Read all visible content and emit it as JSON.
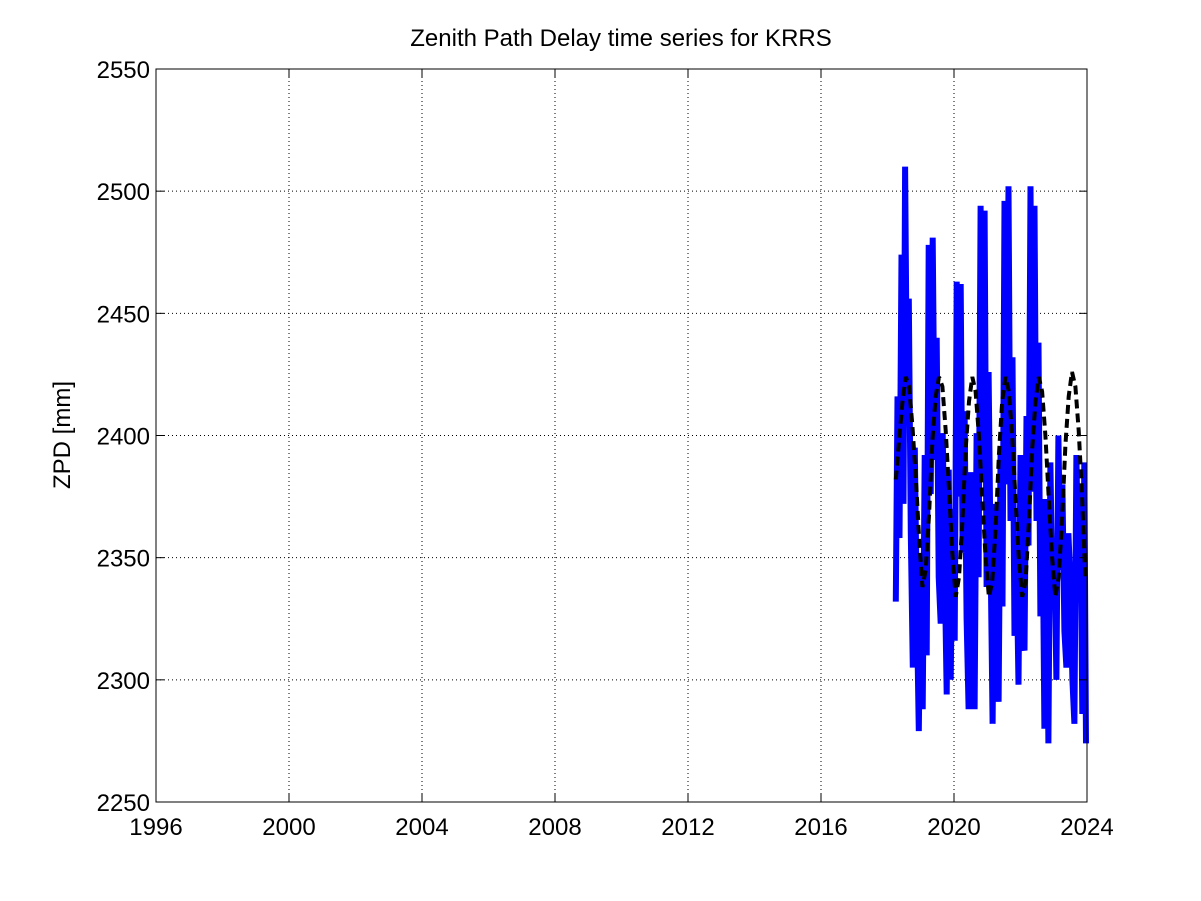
{
  "chart_data": {
    "type": "line",
    "title": "Zenith Path Delay time series for KRRS",
    "xlabel": "",
    "ylabel": "ZPD [mm]",
    "xlim": [
      1996,
      2024
    ],
    "ylim": [
      2250,
      2550
    ],
    "x_ticks": [
      "1996",
      "2000",
      "2004",
      "2008",
      "2012",
      "2016",
      "2020",
      "2024"
    ],
    "y_ticks": [
      "2250",
      "2300",
      "2350",
      "2400",
      "2450",
      "2500",
      "2550"
    ],
    "grid": true,
    "legend": "none",
    "colors": {
      "observed": "#0000ff",
      "model": "#000000"
    },
    "series": [
      {
        "style": "solid-thick",
        "color": "#0000ff",
        "x": [
          2018.25,
          2018.3,
          2018.36,
          2018.42,
          2018.48,
          2018.53,
          2018.59,
          2018.64,
          2018.7,
          2018.76,
          2018.82,
          2018.88,
          2018.94,
          2019.0,
          2019.06,
          2019.12,
          2019.18,
          2019.24,
          2019.3,
          2019.36,
          2019.42,
          2019.48,
          2019.54,
          2019.6,
          2019.66,
          2019.72,
          2019.78,
          2019.84,
          2019.9,
          2019.96,
          2020.02,
          2020.08,
          2020.14,
          2020.2,
          2020.26,
          2020.32,
          2020.38,
          2020.44,
          2020.5,
          2020.56,
          2020.62,
          2020.68,
          2020.74,
          2020.8,
          2020.86,
          2020.92,
          2020.98,
          2021.04,
          2021.1,
          2021.16,
          2021.22,
          2021.28,
          2021.34,
          2021.4,
          2021.46,
          2021.52,
          2021.58,
          2021.64,
          2021.7,
          2021.76,
          2021.82,
          2021.88,
          2021.94,
          2022.0,
          2022.06,
          2022.12,
          2022.18,
          2022.24,
          2022.3,
          2022.36,
          2022.42,
          2022.48,
          2022.54,
          2022.6,
          2022.66,
          2022.72,
          2022.78,
          2022.84,
          2022.9,
          2022.96,
          2023.02,
          2023.08,
          2023.14,
          2023.2,
          2023.26,
          2023.32,
          2023.38,
          2023.44,
          2023.5,
          2023.56,
          2023.62,
          2023.68,
          2023.74,
          2023.8,
          2023.86,
          2023.92,
          2023.97
        ],
        "y": [
          2332,
          2416,
          2358,
          2474,
          2372,
          2510,
          2408,
          2456,
          2360,
          2305,
          2395,
          2330,
          2279,
          2350,
          2288,
          2392,
          2310,
          2478,
          2376,
          2481,
          2390,
          2440,
          2342,
          2323,
          2401,
          2346,
          2294,
          2386,
          2300,
          2370,
          2316,
          2463,
          2375,
          2462,
          2352,
          2410,
          2325,
          2288,
          2385,
          2330,
          2288,
          2401,
          2342,
          2494,
          2384,
          2492,
          2338,
          2426,
          2350,
          2282,
          2372,
          2312,
          2291,
          2395,
          2330,
          2496,
          2380,
          2502,
          2365,
          2432,
          2318,
          2350,
          2298,
          2392,
          2316,
          2312,
          2408,
          2355,
          2502,
          2377,
          2494,
          2365,
          2438,
          2326,
          2374,
          2280,
          2374,
          2274,
          2389,
          2335,
          2355,
          2300,
          2400,
          2345,
          2380,
          2320,
          2305,
          2360,
          2340,
          2300,
          2282,
          2392,
          2340,
          2380,
          2286,
          2389,
          2274
        ]
      },
      {
        "style": "dashed",
        "color": "#000000",
        "x": [
          2018.25,
          2018.35,
          2018.45,
          2018.55,
          2018.65,
          2018.75,
          2018.85,
          2018.95,
          2019.05,
          2019.15,
          2019.25,
          2019.35,
          2019.45,
          2019.55,
          2019.65,
          2019.75,
          2019.85,
          2019.95,
          2020.05,
          2020.15,
          2020.25,
          2020.35,
          2020.45,
          2020.55,
          2020.65,
          2020.75,
          2020.85,
          2020.95,
          2021.05,
          2021.15,
          2021.25,
          2021.35,
          2021.45,
          2021.55,
          2021.65,
          2021.75,
          2021.85,
          2021.95,
          2022.05,
          2022.15,
          2022.25,
          2022.35,
          2022.45,
          2022.55,
          2022.65,
          2022.75,
          2022.85,
          2022.95,
          2023.05,
          2023.15,
          2023.25,
          2023.35,
          2023.45,
          2023.55,
          2023.65,
          2023.75,
          2023.85,
          2023.95
        ],
        "y": [
          2382,
          2398,
          2414,
          2424,
          2420,
          2404,
          2383,
          2358,
          2338,
          2345,
          2368,
          2398,
          2416,
          2424,
          2420,
          2402,
          2378,
          2352,
          2334,
          2342,
          2364,
          2394,
          2414,
          2424,
          2418,
          2400,
          2374,
          2350,
          2334,
          2340,
          2362,
          2392,
          2414,
          2424,
          2418,
          2400,
          2374,
          2350,
          2334,
          2340,
          2364,
          2394,
          2414,
          2424,
          2418,
          2400,
          2374,
          2350,
          2334,
          2342,
          2366,
          2396,
          2416,
          2426,
          2420,
          2402,
          2376,
          2342
        ]
      }
    ]
  }
}
